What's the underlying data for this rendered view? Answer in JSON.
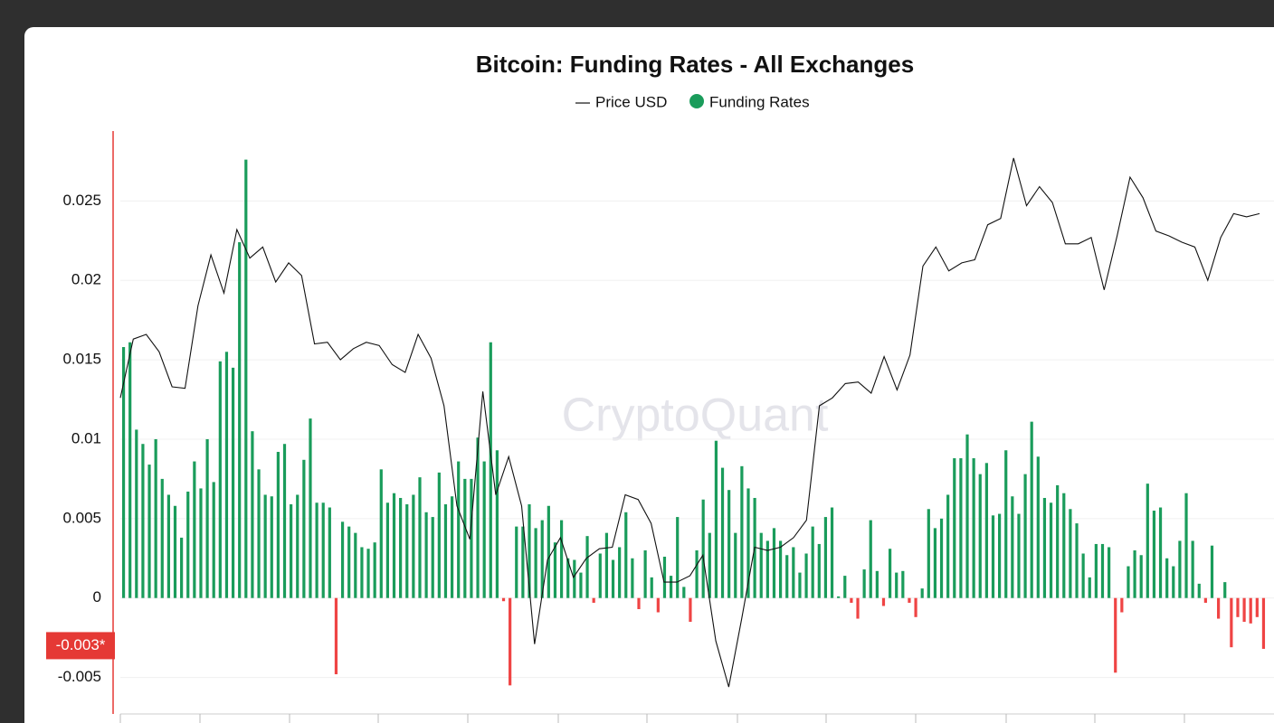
{
  "chart_data": {
    "type": "bar",
    "title": "Bitcoin: Funding Rates - All Exchanges",
    "watermark": "CryptoQuant",
    "cursor_label": {
      "value": -0.003,
      "label": "-0.003*"
    },
    "ylim": [
      -0.0073,
      0.0294
    ],
    "yticks": [
      -0.005,
      0,
      0.005,
      0.01,
      0.015,
      0.02,
      0.025
    ],
    "grid": true,
    "series": [
      {
        "name": "Price USD",
        "type": "line",
        "color": "#111111",
        "values": [
          0.0126,
          0.0163,
          0.0166,
          0.0155,
          0.0133,
          0.0132,
          0.0184,
          0.0216,
          0.0192,
          0.0232,
          0.0214,
          0.0221,
          0.0199,
          0.0211,
          0.0203,
          0.016,
          0.0161,
          0.015,
          0.0157,
          0.0161,
          0.0159,
          0.0147,
          0.0142,
          0.0166,
          0.0151,
          0.0121,
          0.0058,
          0.0037,
          0.013,
          0.0065,
          0.0089,
          0.0058,
          -0.0029,
          0.0024,
          0.0038,
          0.0013,
          0.0025,
          0.0031,
          0.0032,
          0.0065,
          0.0062,
          0.0047,
          0.001,
          0.001,
          0.0014,
          0.0027,
          -0.0027,
          -0.0056,
          -0.0013,
          0.0032,
          0.003,
          0.0032,
          0.0038,
          0.0049,
          0.0121,
          0.0126,
          0.0135,
          0.0136,
          0.0129,
          0.0152,
          0.0131,
          0.0153,
          0.0209,
          0.0221,
          0.0206,
          0.0211,
          0.0213,
          0.0235,
          0.0239,
          0.0277,
          0.0247,
          0.0259,
          0.0249,
          0.0223,
          0.0223,
          0.0227,
          0.0194,
          0.0228,
          0.0265,
          0.0252,
          0.0231,
          0.0228,
          0.0224,
          0.0221,
          0.02,
          0.0227,
          0.0242,
          0.024,
          0.0242
        ]
      },
      {
        "name": "Funding Rates",
        "type": "bar",
        "color": "#1a9c5b",
        "negative_color": "#ef4444",
        "values": [
          0.0158,
          0.0161,
          0.0106,
          0.0097,
          0.0084,
          0.01,
          0.0075,
          0.0065,
          0.0058,
          0.0038,
          0.0067,
          0.0086,
          0.0069,
          0.01,
          0.0073,
          0.0149,
          0.0155,
          0.0145,
          0.0224,
          0.0276,
          0.0105,
          0.0081,
          0.0065,
          0.0064,
          0.0092,
          0.0097,
          0.0059,
          0.0065,
          0.0087,
          0.0113,
          0.006,
          0.006,
          0.0057,
          -0.0048,
          0.0048,
          0.0045,
          0.0041,
          0.0032,
          0.0031,
          0.0035,
          0.0081,
          0.006,
          0.0066,
          0.0063,
          0.0059,
          0.0065,
          0.0076,
          0.0054,
          0.0051,
          0.0079,
          0.0059,
          0.0064,
          0.0086,
          0.0075,
          0.0075,
          0.0101,
          0.0086,
          0.0161,
          0.0093,
          -0.0002,
          -0.0055,
          0.0045,
          0.0045,
          0.0059,
          0.0044,
          0.0049,
          0.0058,
          0.0035,
          0.0049,
          0.0025,
          0.0024,
          0.0016,
          0.0039,
          -0.0003,
          0.0028,
          0.0041,
          0.0024,
          0.0032,
          0.0054,
          0.0025,
          -0.0007,
          0.003,
          0.0013,
          -0.0009,
          0.0026,
          0.0014,
          0.0051,
          0.0007,
          -0.0015,
          0.003,
          0.0062,
          0.0041,
          0.0099,
          0.0082,
          0.0068,
          0.0041,
          0.0083,
          0.0069,
          0.0063,
          0.0041,
          0.0036,
          0.0044,
          0.0036,
          0.0027,
          0.0032,
          0.0016,
          0.0028,
          0.0045,
          0.0034,
          0.0051,
          0.0057,
          0.0001,
          0.0014,
          -0.0003,
          -0.0013,
          0.0018,
          0.0049,
          0.0017,
          -0.0005,
          0.0031,
          0.0016,
          0.0017,
          -0.0003,
          -0.0012,
          0.0006,
          0.0056,
          0.0044,
          0.005,
          0.0065,
          0.0088,
          0.0088,
          0.0103,
          0.0088,
          0.0078,
          0.0085,
          0.0052,
          0.0053,
          0.0093,
          0.0064,
          0.0053,
          0.0078,
          0.0111,
          0.0089,
          0.0063,
          0.006,
          0.0071,
          0.0066,
          0.0056,
          0.0047,
          0.0028,
          0.0013,
          0.0034,
          0.0034,
          0.0032,
          -0.0047,
          -0.0009,
          0.002,
          0.003,
          0.0027,
          0.0072,
          0.0055,
          0.0057,
          0.0025,
          0.002,
          0.0036,
          0.0066,
          0.0036,
          0.0009,
          -0.0003,
          0.0033,
          -0.0013,
          0.001,
          -0.0031,
          -0.0012,
          -0.0015,
          -0.0016,
          -0.0012,
          -0.0032
        ]
      }
    ]
  }
}
